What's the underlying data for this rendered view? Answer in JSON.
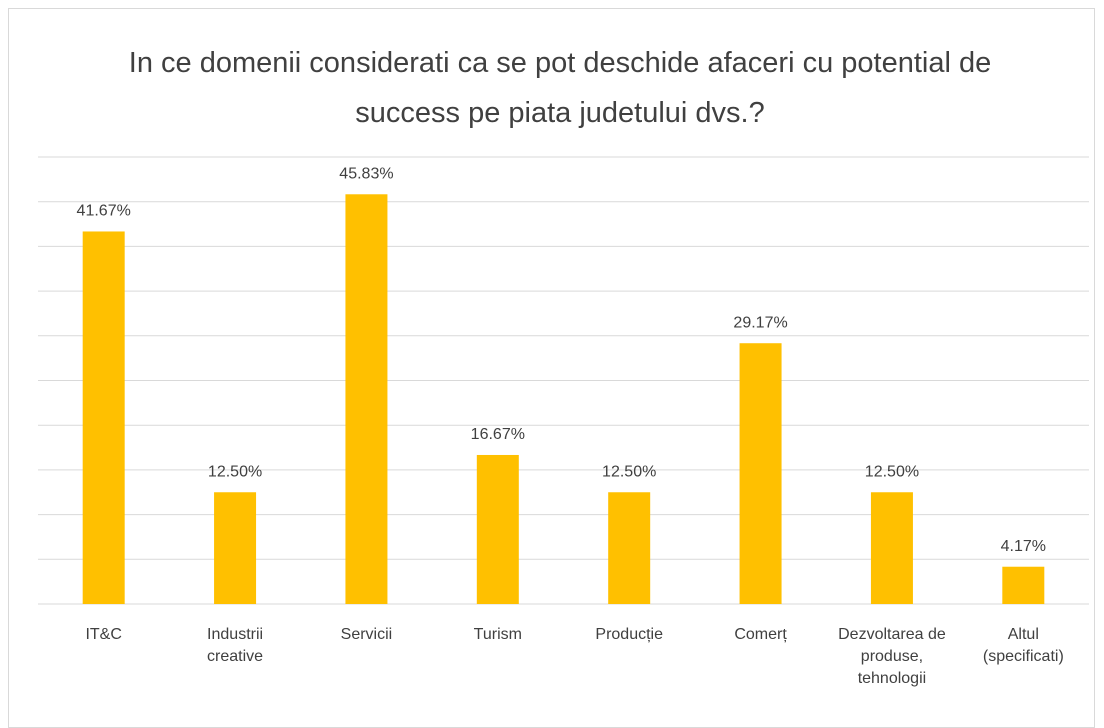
{
  "chart_data": {
    "type": "bar",
    "title": "In ce domenii considerati ca se pot deschide afaceri cu potential de success pe piata judetului dvs.?",
    "categories": [
      "IT&C",
      "Industrii creative",
      "Servicii",
      "Turism",
      "Producție",
      "Comerț",
      "Dezvoltarea de produse, tehnologii",
      "Altul (specificati)"
    ],
    "values": [
      41.67,
      12.5,
      45.83,
      16.67,
      12.5,
      29.17,
      12.5,
      4.17
    ],
    "value_labels": [
      "41.67%",
      "12.50%",
      "45.83%",
      "16.67%",
      "12.50%",
      "29.17%",
      "12.50%",
      "4.17%"
    ],
    "color": "#ffc000",
    "ylim": [
      0,
      50
    ],
    "yticks": [
      0,
      5,
      10,
      15,
      20,
      25,
      30,
      35,
      40,
      45,
      50
    ],
    "grid": true
  }
}
